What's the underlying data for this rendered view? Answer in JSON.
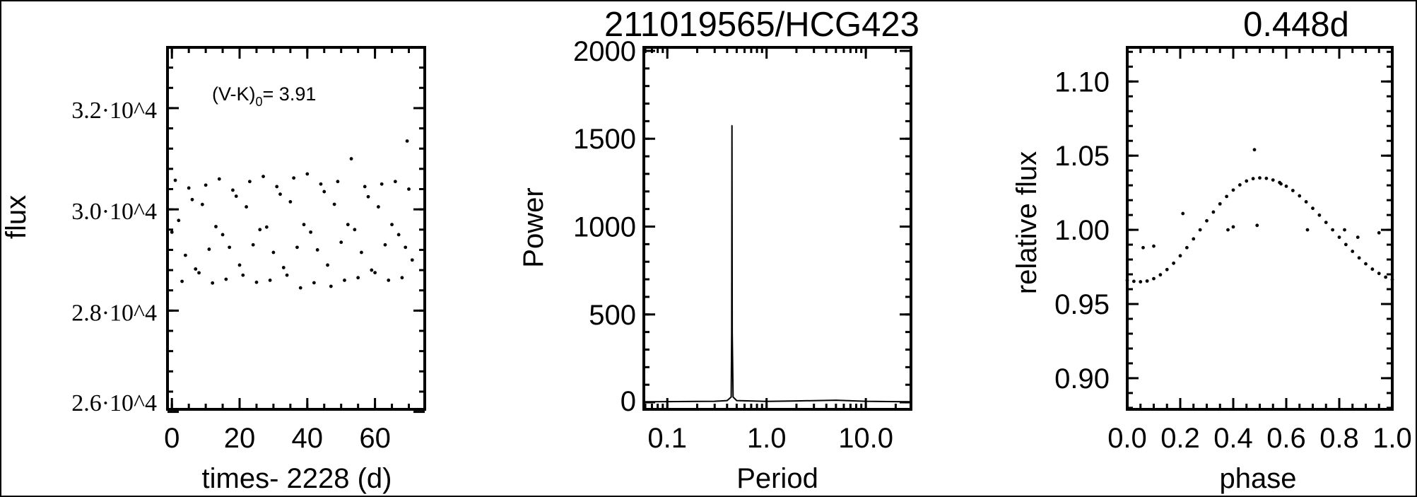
{
  "figure": {
    "title": "211019565/HCG423",
    "period_title": "0.448d"
  },
  "chart_data": [
    {
      "type": "scatter",
      "xlabel": "times- 2228 (d)",
      "ylabel": "flux",
      "xlim": [
        -1.3,
        74.7
      ],
      "ylim": [
        26050,
        33200
      ],
      "xticks": [
        0,
        20,
        40,
        60
      ],
      "xtick_labels": [
        "0",
        "20",
        "40",
        "60"
      ],
      "yticks": [
        26000,
        28000,
        30000,
        32000
      ],
      "ytick_labels": [
        "2.6·10^4",
        "2.8·10^4",
        "3.0·10^4",
        "3.2·10^4"
      ],
      "annotation": {
        "text": "(V-K)",
        "sub": "0",
        "value": "= 3.91"
      },
      "x": [
        0,
        1,
        2,
        3,
        4,
        5,
        6,
        7,
        8,
        9,
        10,
        11,
        12,
        13,
        14,
        15,
        16,
        17,
        18,
        19,
        20,
        21,
        22,
        23,
        24,
        25,
        26,
        27,
        28,
        29,
        30,
        31,
        32,
        33,
        34,
        35,
        36,
        37,
        38,
        39,
        40,
        41,
        42,
        43,
        44,
        45,
        46,
        47,
        48,
        49,
        50,
        51,
        52,
        53,
        54,
        55,
        56,
        57,
        58,
        59,
        60,
        61,
        62,
        63,
        64,
        65,
        66,
        67,
        68,
        69,
        69.5,
        70,
        71
      ],
      "y": [
        29550,
        30574,
        29781,
        28578,
        29093,
        30422,
        30193,
        28822,
        28747,
        30097,
        30479,
        29212,
        28545,
        29660,
        30600,
        29500,
        28620,
        29250,
        30380,
        30260,
        28900,
        28700,
        30050,
        30550,
        29300,
        28560,
        29600,
        30650,
        29650,
        28600,
        29150,
        30450,
        30300,
        28850,
        28700,
        30150,
        30620,
        29250,
        28450,
        29700,
        30700,
        29550,
        28550,
        29200,
        30500,
        30350,
        28900,
        28480,
        30100,
        30550,
        29350,
        28600,
        29700,
        31000,
        29600,
        28650,
        29150,
        30450,
        30250,
        28800,
        28750,
        30050,
        30500,
        29300,
        28600,
        29700,
        30550,
        29500,
        28650,
        29250,
        31350,
        30400,
        29000
      ]
    },
    {
      "type": "line",
      "xlabel": "Period",
      "ylabel": "Power",
      "xscale": "log",
      "xlim": [
        0.058,
        28.5
      ],
      "ylim": [
        -40,
        2020
      ],
      "xticks": [
        0.1,
        1.0,
        10.0
      ],
      "xtick_labels": [
        "0.1",
        "1.0",
        "10.0"
      ],
      "yticks": [
        0,
        500,
        1000,
        1500,
        2000
      ],
      "ytick_labels": [
        "0",
        "500",
        "1000",
        "1500",
        "2000"
      ],
      "x": [
        0.06,
        0.1,
        0.2,
        0.3,
        0.4,
        0.44,
        0.445,
        0.448,
        0.451,
        0.46,
        0.5,
        1,
        2,
        5,
        10,
        20,
        28
      ],
      "y": [
        3,
        4,
        5,
        6,
        10,
        30,
        400,
        1575,
        400,
        30,
        10,
        5,
        8,
        12,
        6,
        4,
        3
      ]
    },
    {
      "type": "scatter",
      "xlabel": "phase",
      "ylabel": "relative flux",
      "xlim": [
        0,
        1
      ],
      "ylim": [
        0.879,
        1.123
      ],
      "xticks": [
        0,
        0.2,
        0.4,
        0.6,
        0.8,
        1.0
      ],
      "xtick_labels": [
        "0.0",
        "0.2",
        "0.4",
        "0.6",
        "0.8",
        "1.0"
      ],
      "yticks": [
        0.9,
        0.95,
        1.0,
        1.05,
        1.1
      ],
      "ytick_labels": [
        "0.90",
        "0.95",
        "1.00",
        "1.05",
        "1.10"
      ],
      "x": [
        0,
        0.025,
        0.05,
        0.075,
        0.1,
        0.125,
        0.15,
        0.175,
        0.2,
        0.225,
        0.25,
        0.275,
        0.3,
        0.325,
        0.35,
        0.375,
        0.4,
        0.425,
        0.45,
        0.475,
        0.5,
        0.525,
        0.55,
        0.575,
        0.6,
        0.625,
        0.65,
        0.675,
        0.7,
        0.725,
        0.75,
        0.775,
        0.8,
        0.825,
        0.85,
        0.875,
        0.9,
        0.925,
        0.95,
        0.975,
        1.0,
        0.06,
        0.1,
        0.38,
        0.4,
        0.48,
        0.49,
        0.58,
        0.68,
        0.82,
        0.87,
        0.95,
        0.21
      ],
      "y": [
        0.966,
        0.9653,
        0.965,
        0.9655,
        0.9671,
        0.9697,
        0.9732,
        0.9775,
        0.9825,
        0.988,
        0.9939,
        1.0,
        1.0061,
        1.012,
        1.0175,
        1.0225,
        1.0268,
        1.0303,
        1.0329,
        1.0345,
        1.035,
        1.0347,
        1.0336,
        1.0319,
        1.0294,
        1.0265,
        1.0229,
        1.0189,
        1.0145,
        1.0099,
        1.005,
        1.0,
        0.995,
        0.9901,
        0.9855,
        0.9811,
        0.9771,
        0.9735,
        0.9706,
        0.9681,
        0.9664,
        0.988,
        0.989,
        1.0,
        1.002,
        1.054,
        1.003,
        1.031,
        1.0,
        1.0,
        0.995,
        0.998,
        1.011
      ]
    }
  ]
}
